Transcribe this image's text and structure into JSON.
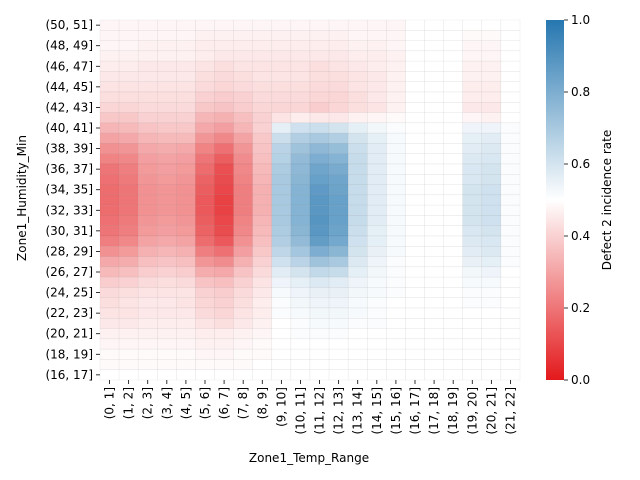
{
  "chart_data": {
    "type": "heatmap",
    "title": "",
    "xlabel": "Zone1_Temp_Range",
    "ylabel": "Zone1_Humidity_Min",
    "x_categories": [
      "(0, 1]",
      "(1, 2]",
      "(2, 3]",
      "(3, 4]",
      "(4, 5]",
      "(5, 6]",
      "(6, 7]",
      "(7, 8]",
      "(8, 9]",
      "(9, 10]",
      "(10, 11]",
      "(11, 12]",
      "(12, 13]",
      "(13, 14]",
      "(14, 15]",
      "(15, 16]",
      "(16, 17]",
      "(17, 18]",
      "(18, 19]",
      "(19, 20]",
      "(20, 21]",
      "(21, 22]"
    ],
    "y_categories": [
      "(50, 51]",
      "(49, 50]",
      "(48, 49]",
      "(47, 48]",
      "(46, 47]",
      "(45, 46]",
      "(44, 45]",
      "(43, 44]",
      "(42, 43]",
      "(41, 42]",
      "(40, 41]",
      "(39, 40]",
      "(38, 39]",
      "(37, 38]",
      "(36, 37]",
      "(35, 36]",
      "(34, 35]",
      "(33, 34]",
      "(32, 33]",
      "(31, 32]",
      "(30, 31]",
      "(29, 30]",
      "(28, 29]",
      "(27, 28]",
      "(26, 27]",
      "(25, 26]",
      "(24, 25]",
      "(23, 24]",
      "(22, 23]",
      "(21, 22]",
      "(20, 21]",
      "(19, 20]",
      "(18, 19]",
      "(17, 18]",
      "(16, 17]"
    ],
    "y_tick_labels_shown": [
      "(50, 51]",
      "(48, 49]",
      "(46, 47]",
      "(44, 45]",
      "(42, 43]",
      "(40, 41]",
      "(38, 39]",
      "(36, 37]",
      "(34, 35]",
      "(32, 33]",
      "(30, 31]",
      "(28, 29]",
      "(26, 27]",
      "(24, 25]",
      "(22, 23]",
      "(20, 21]",
      "(18, 19]",
      "(16, 17]"
    ],
    "colorbar": {
      "label": "Defect 2 incidence rate",
      "range": [
        0.0,
        1.0
      ],
      "ticks": [
        "0.0",
        "0.2",
        "0.4",
        "0.6",
        "0.8",
        "1.0"
      ],
      "colors": {
        "low": "#e3191c",
        "mid": "#ffffff",
        "high": "#2677b0"
      }
    },
    "values": [
      [
        0.48,
        0.48,
        0.48,
        0.48,
        0.48,
        0.48,
        0.48,
        0.48,
        0.48,
        0.48,
        0.48,
        0.48,
        0.48,
        0.48,
        0.48,
        0.48,
        0.5,
        0.5,
        0.5,
        0.5,
        0.5,
        0.5
      ],
      [
        0.48,
        0.48,
        0.48,
        0.48,
        0.48,
        0.47,
        0.47,
        0.47,
        0.47,
        0.47,
        0.47,
        0.47,
        0.47,
        0.48,
        0.48,
        0.48,
        0.5,
        0.5,
        0.5,
        0.49,
        0.49,
        0.5
      ],
      [
        0.48,
        0.48,
        0.47,
        0.47,
        0.47,
        0.46,
        0.46,
        0.46,
        0.46,
        0.46,
        0.46,
        0.46,
        0.46,
        0.47,
        0.47,
        0.48,
        0.5,
        0.5,
        0.5,
        0.48,
        0.48,
        0.5
      ],
      [
        0.47,
        0.47,
        0.47,
        0.47,
        0.47,
        0.46,
        0.45,
        0.45,
        0.45,
        0.45,
        0.45,
        0.45,
        0.45,
        0.46,
        0.46,
        0.47,
        0.5,
        0.5,
        0.5,
        0.48,
        0.48,
        0.5
      ],
      [
        0.46,
        0.46,
        0.45,
        0.45,
        0.45,
        0.44,
        0.43,
        0.44,
        0.44,
        0.44,
        0.44,
        0.43,
        0.44,
        0.45,
        0.46,
        0.47,
        0.5,
        0.5,
        0.5,
        0.47,
        0.47,
        0.5
      ],
      [
        0.45,
        0.45,
        0.45,
        0.45,
        0.45,
        0.43,
        0.42,
        0.43,
        0.44,
        0.44,
        0.44,
        0.43,
        0.43,
        0.44,
        0.45,
        0.47,
        0.5,
        0.5,
        0.5,
        0.47,
        0.47,
        0.5
      ],
      [
        0.44,
        0.44,
        0.44,
        0.44,
        0.44,
        0.42,
        0.41,
        0.42,
        0.43,
        0.43,
        0.43,
        0.42,
        0.42,
        0.44,
        0.45,
        0.47,
        0.5,
        0.5,
        0.5,
        0.46,
        0.46,
        0.5
      ],
      [
        0.43,
        0.43,
        0.43,
        0.43,
        0.43,
        0.4,
        0.39,
        0.4,
        0.42,
        0.42,
        0.42,
        0.41,
        0.41,
        0.43,
        0.45,
        0.47,
        0.5,
        0.5,
        0.5,
        0.46,
        0.46,
        0.5
      ],
      [
        0.41,
        0.41,
        0.42,
        0.42,
        0.42,
        0.38,
        0.37,
        0.39,
        0.41,
        0.41,
        0.41,
        0.39,
        0.41,
        0.43,
        0.44,
        0.47,
        0.5,
        0.5,
        0.5,
        0.45,
        0.45,
        0.5
      ],
      [
        0.38,
        0.38,
        0.4,
        0.4,
        0.4,
        0.34,
        0.33,
        0.36,
        0.4,
        0.44,
        0.46,
        0.45,
        0.45,
        0.47,
        0.48,
        0.49,
        0.5,
        0.5,
        0.5,
        0.48,
        0.47,
        0.5
      ],
      [
        0.34,
        0.35,
        0.37,
        0.38,
        0.38,
        0.31,
        0.29,
        0.34,
        0.4,
        0.56,
        0.61,
        0.62,
        0.6,
        0.56,
        0.53,
        0.51,
        0.5,
        0.5,
        0.5,
        0.54,
        0.54,
        0.51
      ],
      [
        0.3,
        0.31,
        0.34,
        0.35,
        0.35,
        0.27,
        0.24,
        0.3,
        0.38,
        0.62,
        0.68,
        0.7,
        0.68,
        0.6,
        0.56,
        0.52,
        0.5,
        0.5,
        0.5,
        0.56,
        0.57,
        0.51
      ],
      [
        0.26,
        0.27,
        0.31,
        0.32,
        0.31,
        0.23,
        0.19,
        0.27,
        0.37,
        0.66,
        0.72,
        0.76,
        0.74,
        0.62,
        0.57,
        0.52,
        0.5,
        0.5,
        0.5,
        0.57,
        0.58,
        0.51
      ],
      [
        0.23,
        0.24,
        0.29,
        0.3,
        0.29,
        0.2,
        0.15,
        0.25,
        0.36,
        0.67,
        0.75,
        0.8,
        0.78,
        0.63,
        0.57,
        0.52,
        0.5,
        0.5,
        0.5,
        0.58,
        0.59,
        0.51
      ],
      [
        0.2,
        0.22,
        0.28,
        0.29,
        0.28,
        0.18,
        0.12,
        0.24,
        0.35,
        0.69,
        0.76,
        0.83,
        0.81,
        0.63,
        0.57,
        0.52,
        0.5,
        0.5,
        0.5,
        0.59,
        0.6,
        0.51
      ],
      [
        0.19,
        0.21,
        0.27,
        0.28,
        0.27,
        0.16,
        0.11,
        0.23,
        0.34,
        0.7,
        0.77,
        0.85,
        0.83,
        0.63,
        0.57,
        0.52,
        0.5,
        0.5,
        0.5,
        0.59,
        0.6,
        0.51
      ],
      [
        0.18,
        0.2,
        0.26,
        0.27,
        0.26,
        0.15,
        0.1,
        0.22,
        0.33,
        0.7,
        0.78,
        0.87,
        0.84,
        0.63,
        0.57,
        0.52,
        0.5,
        0.5,
        0.5,
        0.6,
        0.61,
        0.51
      ],
      [
        0.18,
        0.2,
        0.26,
        0.27,
        0.26,
        0.14,
        0.09,
        0.22,
        0.33,
        0.7,
        0.78,
        0.88,
        0.85,
        0.63,
        0.57,
        0.52,
        0.5,
        0.5,
        0.5,
        0.6,
        0.61,
        0.51
      ],
      [
        0.18,
        0.2,
        0.26,
        0.27,
        0.26,
        0.14,
        0.09,
        0.22,
        0.33,
        0.7,
        0.78,
        0.88,
        0.85,
        0.63,
        0.57,
        0.52,
        0.5,
        0.5,
        0.5,
        0.6,
        0.61,
        0.51
      ],
      [
        0.19,
        0.21,
        0.27,
        0.28,
        0.27,
        0.15,
        0.1,
        0.23,
        0.34,
        0.7,
        0.78,
        0.89,
        0.85,
        0.63,
        0.57,
        0.52,
        0.5,
        0.5,
        0.5,
        0.6,
        0.61,
        0.51
      ],
      [
        0.2,
        0.22,
        0.28,
        0.29,
        0.28,
        0.16,
        0.11,
        0.24,
        0.35,
        0.69,
        0.77,
        0.88,
        0.84,
        0.62,
        0.56,
        0.52,
        0.5,
        0.5,
        0.5,
        0.59,
        0.6,
        0.51
      ],
      [
        0.22,
        0.24,
        0.3,
        0.31,
        0.3,
        0.18,
        0.14,
        0.26,
        0.36,
        0.68,
        0.75,
        0.86,
        0.82,
        0.61,
        0.56,
        0.52,
        0.5,
        0.5,
        0.5,
        0.58,
        0.59,
        0.51
      ],
      [
        0.26,
        0.28,
        0.33,
        0.34,
        0.33,
        0.22,
        0.19,
        0.29,
        0.38,
        0.65,
        0.71,
        0.8,
        0.77,
        0.6,
        0.55,
        0.52,
        0.5,
        0.5,
        0.5,
        0.57,
        0.58,
        0.51
      ],
      [
        0.31,
        0.32,
        0.36,
        0.37,
        0.36,
        0.27,
        0.25,
        0.33,
        0.4,
        0.61,
        0.66,
        0.72,
        0.7,
        0.58,
        0.54,
        0.51,
        0.5,
        0.5,
        0.5,
        0.55,
        0.56,
        0.51
      ],
      [
        0.35,
        0.36,
        0.39,
        0.4,
        0.39,
        0.32,
        0.31,
        0.37,
        0.42,
        0.57,
        0.6,
        0.64,
        0.63,
        0.56,
        0.53,
        0.51,
        0.5,
        0.5,
        0.5,
        0.53,
        0.54,
        0.5
      ],
      [
        0.39,
        0.4,
        0.42,
        0.43,
        0.42,
        0.37,
        0.36,
        0.4,
        0.44,
        0.54,
        0.56,
        0.58,
        0.57,
        0.54,
        0.52,
        0.51,
        0.5,
        0.5,
        0.5,
        0.52,
        0.52,
        0.5
      ],
      [
        0.42,
        0.43,
        0.44,
        0.44,
        0.44,
        0.4,
        0.39,
        0.42,
        0.45,
        0.52,
        0.54,
        0.55,
        0.55,
        0.53,
        0.52,
        0.51,
        0.5,
        0.5,
        0.5,
        0.51,
        0.51,
        0.5
      ],
      [
        0.43,
        0.44,
        0.45,
        0.45,
        0.44,
        0.41,
        0.4,
        0.43,
        0.46,
        0.51,
        0.53,
        0.54,
        0.54,
        0.52,
        0.51,
        0.5,
        0.5,
        0.5,
        0.5,
        0.51,
        0.51,
        0.5
      ],
      [
        0.44,
        0.44,
        0.45,
        0.45,
        0.45,
        0.42,
        0.41,
        0.44,
        0.46,
        0.51,
        0.52,
        0.53,
        0.53,
        0.52,
        0.51,
        0.5,
        0.5,
        0.5,
        0.5,
        0.5,
        0.5,
        0.5
      ],
      [
        0.45,
        0.45,
        0.46,
        0.46,
        0.46,
        0.44,
        0.43,
        0.45,
        0.47,
        0.5,
        0.51,
        0.52,
        0.52,
        0.51,
        0.51,
        0.5,
        0.5,
        0.5,
        0.5,
        0.5,
        0.5,
        0.5
      ],
      [
        0.47,
        0.47,
        0.47,
        0.47,
        0.47,
        0.46,
        0.46,
        0.47,
        0.48,
        0.5,
        0.51,
        0.51,
        0.51,
        0.5,
        0.5,
        0.5,
        0.5,
        0.5,
        0.5,
        0.5,
        0.5,
        0.5
      ],
      [
        0.48,
        0.48,
        0.48,
        0.48,
        0.48,
        0.47,
        0.47,
        0.48,
        0.49,
        0.5,
        0.5,
        0.5,
        0.5,
        0.5,
        0.5,
        0.5,
        0.5,
        0.5,
        0.5,
        0.5,
        0.5,
        0.5
      ],
      [
        0.49,
        0.49,
        0.49,
        0.49,
        0.49,
        0.48,
        0.48,
        0.49,
        0.49,
        0.5,
        0.5,
        0.5,
        0.5,
        0.5,
        0.5,
        0.5,
        0.5,
        0.5,
        0.5,
        0.5,
        0.5,
        0.5
      ],
      [
        0.49,
        0.49,
        0.49,
        0.49,
        0.49,
        0.49,
        0.49,
        0.49,
        0.5,
        0.5,
        0.5,
        0.5,
        0.5,
        0.5,
        0.5,
        0.5,
        0.5,
        0.5,
        0.5,
        0.5,
        0.5,
        0.5
      ],
      [
        0.5,
        0.5,
        0.5,
        0.5,
        0.5,
        0.5,
        0.5,
        0.5,
        0.5,
        0.5,
        0.5,
        0.5,
        0.5,
        0.5,
        0.5,
        0.5,
        0.5,
        0.5,
        0.5,
        0.5,
        0.5,
        0.5
      ]
    ]
  }
}
